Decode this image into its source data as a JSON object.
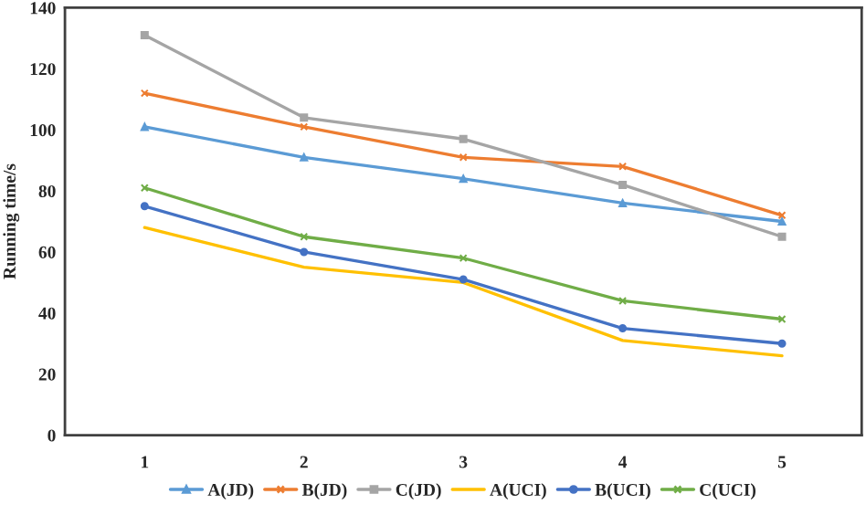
{
  "chart_data": {
    "type": "line",
    "ylabel": "Running time/s",
    "categories": [
      "1",
      "2",
      "3",
      "4",
      "5"
    ],
    "ylim": [
      0,
      140
    ],
    "yticks": [
      0,
      20,
      40,
      60,
      80,
      100,
      120,
      140
    ],
    "grid": false,
    "legend": "bottom",
    "series": [
      {
        "name": "A(JD)",
        "color": "#5b9bd5",
        "marker": "triangle",
        "values": [
          101,
          91,
          84,
          76,
          70
        ]
      },
      {
        "name": "B(JD)",
        "color": "#ed7d31",
        "marker": "cross",
        "values": [
          112,
          101,
          91,
          88,
          72
        ]
      },
      {
        "name": "C(JD)",
        "color": "#a5a5a5",
        "marker": "square",
        "values": [
          131,
          104,
          97,
          82,
          65
        ]
      },
      {
        "name": "A(UCI)",
        "color": "#ffc000",
        "marker": "none",
        "values": [
          68,
          55,
          50,
          31,
          26
        ]
      },
      {
        "name": "B(UCI)",
        "color": "#4472c4",
        "marker": "circle",
        "values": [
          75,
          60,
          51,
          35,
          30
        ]
      },
      {
        "name": "C(UCI)",
        "color": "#70ad47",
        "marker": "cross",
        "values": [
          81,
          65,
          58,
          44,
          38
        ]
      }
    ]
  }
}
